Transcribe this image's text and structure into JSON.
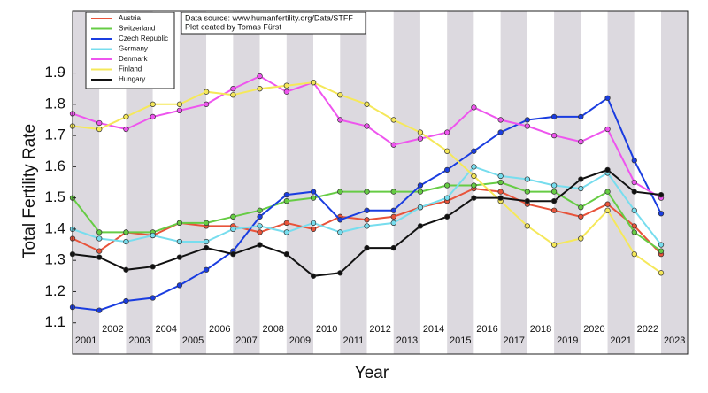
{
  "chart_data": {
    "type": "line",
    "x_label": "Year",
    "y_label": "Total Fertility Rate",
    "annotation": [
      "Data source: www.humanfertility.org/Data/STFF",
      "Plot ceated by Tomas Fürst"
    ],
    "categories": [
      "2001",
      "2002",
      "2003",
      "2004",
      "2005",
      "2006",
      "2007",
      "2008",
      "2009",
      "2010",
      "2011",
      "2012",
      "2013",
      "2014",
      "2015",
      "2016",
      "2017",
      "2018",
      "2019",
      "2020",
      "2021",
      "2022",
      "2023"
    ],
    "ylim": [
      1.0,
      2.1
    ],
    "yticks": [
      1.1,
      1.2,
      1.3,
      1.4,
      1.5,
      1.6,
      1.7,
      1.8,
      1.9
    ],
    "legend": "top-left",
    "series": [
      {
        "name": "Austria",
        "color": "#e8533a",
        "values": [
          1.37,
          1.33,
          1.39,
          1.38,
          1.42,
          1.41,
          1.41,
          1.39,
          1.42,
          1.4,
          1.44,
          1.43,
          1.44,
          1.47,
          1.49,
          1.53,
          1.52,
          1.48,
          1.46,
          1.44,
          1.48,
          1.41,
          1.32
        ]
      },
      {
        "name": "Switzerland",
        "color": "#66cc44",
        "values": [
          1.5,
          1.39,
          1.39,
          1.39,
          1.42,
          1.42,
          1.44,
          1.46,
          1.49,
          1.5,
          1.52,
          1.52,
          1.52,
          1.52,
          1.54,
          1.54,
          1.55,
          1.52,
          1.52,
          1.47,
          1.52,
          1.39,
          1.33
        ]
      },
      {
        "name": "Czech Republic",
        "color": "#1a3de0",
        "values": [
          1.15,
          1.14,
          1.17,
          1.18,
          1.22,
          1.27,
          1.33,
          1.44,
          1.51,
          1.52,
          1.43,
          1.46,
          1.46,
          1.54,
          1.59,
          1.65,
          1.71,
          1.75,
          1.76,
          1.76,
          1.82,
          1.62,
          1.45
        ]
      },
      {
        "name": "Germany",
        "color": "#77ddee",
        "values": [
          1.4,
          1.37,
          1.36,
          1.38,
          1.36,
          1.36,
          1.4,
          1.41,
          1.39,
          1.42,
          1.39,
          1.41,
          1.42,
          1.47,
          1.5,
          1.6,
          1.57,
          1.56,
          1.54,
          1.53,
          1.58,
          1.46,
          1.35
        ]
      },
      {
        "name": "Denmark",
        "color": "#ee55ee",
        "values": [
          1.77,
          1.74,
          1.72,
          1.76,
          1.78,
          1.8,
          1.85,
          1.89,
          1.84,
          1.87,
          1.75,
          1.73,
          1.67,
          1.69,
          1.71,
          1.79,
          1.75,
          1.73,
          1.7,
          1.68,
          1.72,
          1.55,
          1.5
        ]
      },
      {
        "name": "Finland",
        "color": "#f5e85a",
        "values": [
          1.73,
          1.72,
          1.76,
          1.8,
          1.8,
          1.84,
          1.83,
          1.85,
          1.86,
          1.87,
          1.83,
          1.8,
          1.75,
          1.71,
          1.65,
          1.57,
          1.49,
          1.41,
          1.35,
          1.37,
          1.46,
          1.32,
          1.26
        ]
      },
      {
        "name": "Hungary",
        "color": "#111111",
        "values": [
          1.32,
          1.31,
          1.27,
          1.28,
          1.31,
          1.34,
          1.32,
          1.35,
          1.32,
          1.25,
          1.26,
          1.34,
          1.34,
          1.41,
          1.44,
          1.5,
          1.5,
          1.49,
          1.49,
          1.56,
          1.59,
          1.52,
          1.51
        ]
      }
    ]
  }
}
